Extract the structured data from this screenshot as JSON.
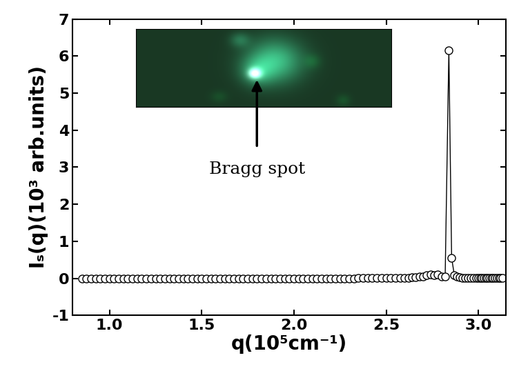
{
  "chart_data": {
    "type": "line",
    "xlabel": "q(10⁵cm⁻¹)",
    "ylabel": "Iₛ(q)(10³ arb.units)",
    "annotation": "Bragg spot",
    "marker": "o",
    "line_style": "solid",
    "color": "#000000",
    "xlim": [
      0.8,
      3.15
    ],
    "xticks": [
      1.0,
      1.5,
      2.0,
      2.5,
      3.0
    ],
    "ylim": [
      -1,
      7
    ],
    "yticks": [
      -1,
      0,
      1,
      2,
      3,
      4,
      5,
      6,
      7
    ],
    "grid": false,
    "x": [
      0.85,
      0.875,
      0.9,
      0.925,
      0.95,
      0.975,
      1.0,
      1.025,
      1.05,
      1.075,
      1.1,
      1.125,
      1.15,
      1.175,
      1.2,
      1.225,
      1.25,
      1.275,
      1.3,
      1.325,
      1.35,
      1.375,
      1.4,
      1.425,
      1.45,
      1.475,
      1.5,
      1.525,
      1.55,
      1.575,
      1.6,
      1.625,
      1.65,
      1.675,
      1.7,
      1.725,
      1.75,
      1.775,
      1.8,
      1.825,
      1.85,
      1.875,
      1.9,
      1.925,
      1.95,
      1.975,
      2.0,
      2.025,
      2.05,
      2.075,
      2.1,
      2.125,
      2.15,
      2.175,
      2.2,
      2.225,
      2.25,
      2.275,
      2.3,
      2.325,
      2.35,
      2.375,
      2.4,
      2.425,
      2.45,
      2.475,
      2.5,
      2.525,
      2.55,
      2.575,
      2.6,
      2.62,
      2.64,
      2.66,
      2.68,
      2.7,
      2.72,
      2.74,
      2.76,
      2.78,
      2.8,
      2.82,
      2.84,
      2.855,
      2.87,
      2.885,
      2.9,
      2.915,
      2.93,
      2.945,
      2.96,
      2.975,
      2.99,
      3.0,
      3.01,
      3.02,
      3.03,
      3.04,
      3.05,
      3.06,
      3.07,
      3.08,
      3.09,
      3.1,
      3.11,
      3.12,
      3.13
    ],
    "values": [
      0,
      0,
      0,
      0,
      0,
      0,
      0,
      0,
      0,
      0,
      0,
      0,
      0,
      0,
      0,
      0,
      0,
      0,
      0,
      0,
      0,
      0,
      0,
      0,
      0,
      0,
      0,
      0,
      0,
      0,
      0,
      0,
      0,
      0,
      0,
      0,
      0,
      0,
      0,
      0,
      0,
      0,
      0,
      0,
      0,
      0,
      0,
      0,
      0,
      0,
      0,
      0,
      0,
      0,
      0,
      0,
      0,
      0,
      0,
      0,
      0.02,
      0.02,
      0.02,
      0.02,
      0.02,
      0.02,
      0.02,
      0.02,
      0.02,
      0.02,
      0.02,
      0.02,
      0.03,
      0.03,
      0.05,
      0.05,
      0.08,
      0.1,
      0.08,
      0.1,
      0.05,
      0.05,
      6.15,
      0.55,
      0.08,
      0.05,
      0.03,
      0.02,
      0.02,
      0.02,
      0.02,
      0.02,
      0.02,
      0.02,
      0.02,
      0.02,
      0.02,
      0.02,
      0.02,
      0.02,
      0.02,
      0.02,
      0.02,
      0.02,
      0.02,
      0.02,
      0.02
    ]
  }
}
